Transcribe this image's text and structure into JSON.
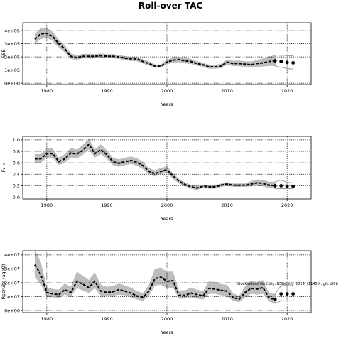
{
  "title": "Roll-over TAC",
  "annotation": "stockassessment.org: NShelling_2019, r11450 , git: df0b",
  "colors": {
    "band": "#bdbdbd",
    "line": "#000000",
    "point": "#000000"
  },
  "chart_data": [
    {
      "id": "ssb",
      "type": "line",
      "xlabel": "Years",
      "ylabel": "SSB",
      "xlim": [
        1976,
        2024
      ],
      "ylim": [
        -10000,
        460000
      ],
      "xticks": [
        {
          "v": 1980,
          "label": "1980"
        },
        {
          "v": 1990,
          "label": "1990"
        },
        {
          "v": 2000,
          "label": "2000"
        },
        {
          "v": 2010,
          "label": "2010"
        },
        {
          "v": 2020,
          "label": "2020"
        }
      ],
      "yticks": [
        {
          "v": 0,
          "label": "0e+00"
        },
        {
          "v": 100000,
          "label": "1e+05"
        },
        {
          "v": 200000,
          "label": "2e+05"
        },
        {
          "v": 300000,
          "label": "3e+05"
        },
        {
          "v": 400000,
          "label": "4e+05"
        }
      ],
      "x": [
        1978,
        1979,
        1980,
        1981,
        1982,
        1983,
        1984,
        1985,
        1986,
        1987,
        1988,
        1989,
        1990,
        1991,
        1992,
        1993,
        1994,
        1995,
        1996,
        1997,
        1998,
        1999,
        2000,
        2001,
        2002,
        2003,
        2004,
        2005,
        2006,
        2007,
        2008,
        2009,
        2010,
        2011,
        2012,
        2013,
        2014,
        2015,
        2016,
        2017,
        2018
      ],
      "estimate": [
        335000,
        375000,
        380000,
        355000,
        300000,
        260000,
        205000,
        195000,
        205000,
        205000,
        205000,
        210000,
        205000,
        205000,
        200000,
        190000,
        185000,
        185000,
        165000,
        150000,
        130000,
        130000,
        160000,
        175000,
        180000,
        170000,
        165000,
        150000,
        140000,
        125000,
        125000,
        130000,
        160000,
        150000,
        150000,
        145000,
        140000,
        150000,
        155000,
        165000,
        170000
      ],
      "lower": [
        300000,
        335000,
        345000,
        320000,
        270000,
        235000,
        185000,
        178000,
        188000,
        188000,
        190000,
        195000,
        190000,
        190000,
        185000,
        175000,
        170000,
        168000,
        150000,
        135000,
        118000,
        118000,
        145000,
        155000,
        160000,
        150000,
        146000,
        133000,
        124000,
        110000,
        110000,
        115000,
        140000,
        131000,
        130000,
        125000,
        118000,
        125000,
        127000,
        132000,
        130000
      ],
      "upper": [
        375000,
        418000,
        420000,
        392000,
        332000,
        288000,
        227000,
        213000,
        223000,
        223000,
        222000,
        226000,
        221000,
        221000,
        216000,
        206000,
        200000,
        202000,
        181000,
        166000,
        143000,
        143000,
        178000,
        197000,
        202000,
        192000,
        186000,
        168000,
        157000,
        141000,
        141000,
        146000,
        181000,
        171000,
        172000,
        168000,
        165000,
        178000,
        188000,
        203000,
        215000
      ],
      "forecast": {
        "x": [
          2018,
          2019,
          2020,
          2021
        ],
        "estimate": [
          170000,
          165000,
          158000,
          155000
        ],
        "lower": [
          130000,
          122000,
          112000,
          108000
        ],
        "upper": [
          215000,
          212000,
          210000,
          208000
        ]
      }
    },
    {
      "id": "f",
      "type": "line",
      "xlabel": "Years",
      "ylabel": "F₂₋₆",
      "xlim": [
        1976,
        2024
      ],
      "ylim": [
        -0.03,
        1.06
      ],
      "xticks": [
        {
          "v": 1980,
          "label": "1980"
        },
        {
          "v": 1990,
          "label": "1990"
        },
        {
          "v": 2000,
          "label": "2000"
        },
        {
          "v": 2010,
          "label": "2010"
        },
        {
          "v": 2020,
          "label": "2020"
        }
      ],
      "yticks": [
        {
          "v": 0,
          "label": "0.0"
        },
        {
          "v": 0.2,
          "label": "0.2"
        },
        {
          "v": 0.4,
          "label": "0.4"
        },
        {
          "v": 0.6,
          "label": "0.6"
        },
        {
          "v": 0.8,
          "label": "0.8"
        },
        {
          "v": 1.0,
          "label": "1.0"
        }
      ],
      "x": [
        1978,
        1979,
        1980,
        1981,
        1982,
        1983,
        1984,
        1985,
        1986,
        1987,
        1988,
        1989,
        1990,
        1991,
        1992,
        1993,
        1994,
        1995,
        1996,
        1997,
        1998,
        1999,
        2000,
        2001,
        2002,
        2003,
        2004,
        2005,
        2006,
        2007,
        2008,
        2009,
        2010,
        2011,
        2012,
        2013,
        2014,
        2015,
        2016,
        2017,
        2018
      ],
      "estimate": [
        0.67,
        0.67,
        0.76,
        0.76,
        0.62,
        0.67,
        0.77,
        0.75,
        0.82,
        0.92,
        0.76,
        0.83,
        0.74,
        0.62,
        0.59,
        0.62,
        0.64,
        0.61,
        0.55,
        0.45,
        0.41,
        0.45,
        0.48,
        0.37,
        0.28,
        0.22,
        0.18,
        0.16,
        0.19,
        0.18,
        0.18,
        0.21,
        0.23,
        0.21,
        0.21,
        0.21,
        0.23,
        0.25,
        0.24,
        0.21,
        0.2
      ],
      "lower": [
        0.6,
        0.6,
        0.69,
        0.69,
        0.56,
        0.6,
        0.69,
        0.68,
        0.74,
        0.83,
        0.69,
        0.75,
        0.67,
        0.56,
        0.53,
        0.56,
        0.58,
        0.55,
        0.49,
        0.4,
        0.36,
        0.4,
        0.43,
        0.32,
        0.24,
        0.19,
        0.15,
        0.13,
        0.16,
        0.15,
        0.15,
        0.18,
        0.2,
        0.18,
        0.18,
        0.18,
        0.19,
        0.2,
        0.19,
        0.16,
        0.15
      ],
      "upper": [
        0.75,
        0.75,
        0.85,
        0.85,
        0.69,
        0.75,
        0.86,
        0.83,
        0.91,
        1.02,
        0.84,
        0.92,
        0.82,
        0.69,
        0.66,
        0.69,
        0.71,
        0.68,
        0.62,
        0.51,
        0.47,
        0.51,
        0.54,
        0.42,
        0.32,
        0.26,
        0.21,
        0.19,
        0.22,
        0.21,
        0.21,
        0.24,
        0.26,
        0.24,
        0.24,
        0.24,
        0.28,
        0.31,
        0.3,
        0.27,
        0.27
      ],
      "forecast": {
        "x": [
          2018,
          2019,
          2020,
          2021
        ],
        "estimate": [
          0.2,
          0.2,
          0.19,
          0.19
        ],
        "lower": [
          0.15,
          0.15,
          0.15,
          0.15
        ],
        "upper": [
          0.27,
          0.3,
          0.26,
          0.25
        ]
      }
    },
    {
      "id": "recruits",
      "type": "line",
      "xlabel": "Years",
      "ylabel": "Recruits (age0)",
      "xlim": [
        1976,
        2024
      ],
      "ylim": [
        -1500000,
        43000000
      ],
      "xticks": [
        {
          "v": 1980,
          "label": "1980"
        },
        {
          "v": 1990,
          "label": "1990"
        },
        {
          "v": 2000,
          "label": "2000"
        },
        {
          "v": 2010,
          "label": "2010"
        },
        {
          "v": 2020,
          "label": "2020"
        }
      ],
      "yticks": [
        {
          "v": 0,
          "label": "0e+00"
        },
        {
          "v": 10000000,
          "label": "1e+07"
        },
        {
          "v": 20000000,
          "label": "2e+07"
        },
        {
          "v": 30000000,
          "label": "3e+07"
        },
        {
          "v": 40000000,
          "label": "4e+07"
        }
      ],
      "x": [
        1978,
        1979,
        1980,
        1981,
        1982,
        1983,
        1984,
        1985,
        1986,
        1987,
        1988,
        1989,
        1990,
        1991,
        1992,
        1993,
        1994,
        1995,
        1996,
        1997,
        1998,
        1999,
        2000,
        2001,
        2002,
        2003,
        2004,
        2005,
        2006,
        2007,
        2008,
        2009,
        2010,
        2011,
        2012,
        2013,
        2014,
        2015,
        2016,
        2017,
        2018
      ],
      "estimate": [
        33000000,
        26000000,
        13000000,
        12000000,
        11500000,
        15000000,
        13000000,
        21000000,
        19000000,
        16500000,
        21000000,
        14000000,
        13000000,
        13500000,
        15000000,
        14000000,
        12500000,
        10500000,
        9500000,
        14000000,
        23000000,
        24000000,
        21000000,
        21500000,
        11000000,
        11000000,
        12500000,
        11500000,
        10500000,
        16000000,
        15500000,
        14500000,
        14000000,
        9500000,
        8000000,
        13000000,
        16000000,
        15500000,
        16500000,
        9000000,
        8000000
      ],
      "lower": [
        24000000,
        19000000,
        10000000,
        9500000,
        9000000,
        11500000,
        10000000,
        16000000,
        14500000,
        12500000,
        16000000,
        10500000,
        10000000,
        10500000,
        11500000,
        11000000,
        9500000,
        8000000,
        7000000,
        10500000,
        18000000,
        18500000,
        16000000,
        16500000,
        8500000,
        8500000,
        9500000,
        8500000,
        8000000,
        12000000,
        12000000,
        11000000,
        10500000,
        7000000,
        6000000,
        9500000,
        12000000,
        11500000,
        12000000,
        6500000,
        5000000
      ],
      "upper": [
        44000000,
        35000000,
        17000000,
        15500000,
        15000000,
        19500000,
        17000000,
        28000000,
        25000000,
        22000000,
        27500000,
        18500000,
        17000000,
        17500000,
        19500000,
        18000000,
        16500000,
        14000000,
        12500000,
        18500000,
        30000000,
        31000000,
        28000000,
        28000000,
        14500000,
        14500000,
        16500000,
        15000000,
        14000000,
        21000000,
        20500000,
        19000000,
        18500000,
        12500000,
        10500000,
        17500000,
        21500000,
        20500000,
        22000000,
        12500000,
        12000000
      ],
      "forecast": {
        "x": [
          2018,
          2019,
          2020,
          2021
        ],
        "estimate": [
          8000000,
          12000000,
          12000000,
          12000000
        ],
        "lower": [
          5000000,
          7000000,
          7000000,
          7000000
        ],
        "upper": [
          12000000,
          18000000,
          18000000,
          18000000
        ]
      }
    }
  ]
}
